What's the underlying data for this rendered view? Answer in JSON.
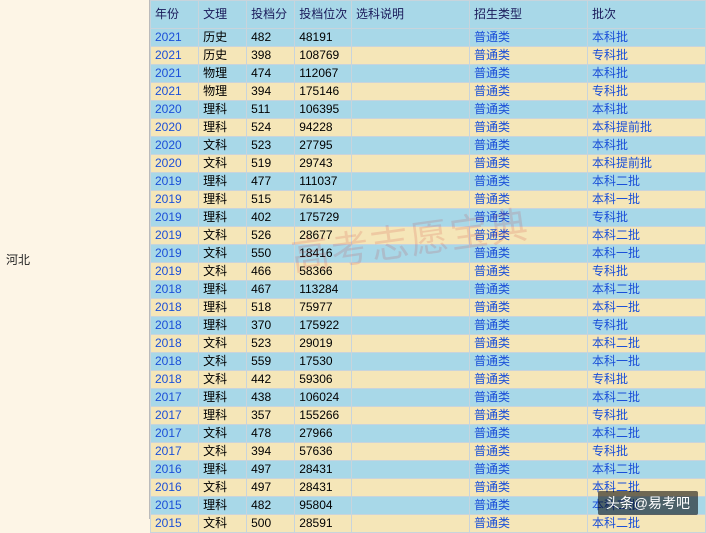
{
  "side_label": "河北",
  "watermark_text": "高考志愿宝典",
  "credit_text": "头条@易考吧",
  "colors": {
    "row_even": "#a8d8e8",
    "row_odd": "#f5e6b8",
    "header_bg": "#a8d8e8",
    "side_bg": "#fdf5e6",
    "border": "#c8d4dc",
    "link": "#1a4fd8",
    "header_text": "#1a1a5a"
  },
  "columns": [
    {
      "key": "year",
      "label": "年份"
    },
    {
      "key": "subject",
      "label": "文理"
    },
    {
      "key": "score",
      "label": "投档分"
    },
    {
      "key": "rank",
      "label": "投档位次"
    },
    {
      "key": "note",
      "label": "选科说明"
    },
    {
      "key": "type",
      "label": "招生类型"
    },
    {
      "key": "batch",
      "label": "批次"
    }
  ],
  "rows": [
    {
      "year": "2021",
      "subject": "历史",
      "score": "482",
      "rank": "48191",
      "note": "",
      "type": "普通类",
      "batch": "本科批"
    },
    {
      "year": "2021",
      "subject": "历史",
      "score": "398",
      "rank": "108769",
      "note": "",
      "type": "普通类",
      "batch": "专科批"
    },
    {
      "year": "2021",
      "subject": "物理",
      "score": "474",
      "rank": "112067",
      "note": "",
      "type": "普通类",
      "batch": "本科批"
    },
    {
      "year": "2021",
      "subject": "物理",
      "score": "394",
      "rank": "175146",
      "note": "",
      "type": "普通类",
      "batch": "专科批"
    },
    {
      "year": "2020",
      "subject": "理科",
      "score": "511",
      "rank": "106395",
      "note": "",
      "type": "普通类",
      "batch": "本科批"
    },
    {
      "year": "2020",
      "subject": "理科",
      "score": "524",
      "rank": "94228",
      "note": "",
      "type": "普通类",
      "batch": "本科提前批"
    },
    {
      "year": "2020",
      "subject": "文科",
      "score": "523",
      "rank": "27795",
      "note": "",
      "type": "普通类",
      "batch": "本科批"
    },
    {
      "year": "2020",
      "subject": "文科",
      "score": "519",
      "rank": "29743",
      "note": "",
      "type": "普通类",
      "batch": "本科提前批"
    },
    {
      "year": "2019",
      "subject": "理科",
      "score": "477",
      "rank": "111037",
      "note": "",
      "type": "普通类",
      "batch": "本科二批"
    },
    {
      "year": "2019",
      "subject": "理科",
      "score": "515",
      "rank": "76145",
      "note": "",
      "type": "普通类",
      "batch": "本科一批"
    },
    {
      "year": "2019",
      "subject": "理科",
      "score": "402",
      "rank": "175729",
      "note": "",
      "type": "普通类",
      "batch": "专科批"
    },
    {
      "year": "2019",
      "subject": "文科",
      "score": "526",
      "rank": "28677",
      "note": "",
      "type": "普通类",
      "batch": "本科二批"
    },
    {
      "year": "2019",
      "subject": "文科",
      "score": "550",
      "rank": "18416",
      "note": "",
      "type": "普通类",
      "batch": "本科一批"
    },
    {
      "year": "2019",
      "subject": "文科",
      "score": "466",
      "rank": "58366",
      "note": "",
      "type": "普通类",
      "batch": "专科批"
    },
    {
      "year": "2018",
      "subject": "理科",
      "score": "467",
      "rank": "113284",
      "note": "",
      "type": "普通类",
      "batch": "本科二批"
    },
    {
      "year": "2018",
      "subject": "理科",
      "score": "518",
      "rank": "75977",
      "note": "",
      "type": "普通类",
      "batch": "本科一批"
    },
    {
      "year": "2018",
      "subject": "理科",
      "score": "370",
      "rank": "175922",
      "note": "",
      "type": "普通类",
      "batch": "专科批"
    },
    {
      "year": "2018",
      "subject": "文科",
      "score": "523",
      "rank": "29019",
      "note": "",
      "type": "普通类",
      "batch": "本科二批"
    },
    {
      "year": "2018",
      "subject": "文科",
      "score": "559",
      "rank": "17530",
      "note": "",
      "type": "普通类",
      "batch": "本科一批"
    },
    {
      "year": "2018",
      "subject": "文科",
      "score": "442",
      "rank": "59306",
      "note": "",
      "type": "普通类",
      "batch": "专科批"
    },
    {
      "year": "2017",
      "subject": "理科",
      "score": "438",
      "rank": "106024",
      "note": "",
      "type": "普通类",
      "batch": "本科二批"
    },
    {
      "year": "2017",
      "subject": "理科",
      "score": "357",
      "rank": "155266",
      "note": "",
      "type": "普通类",
      "batch": "专科批"
    },
    {
      "year": "2017",
      "subject": "文科",
      "score": "478",
      "rank": "27966",
      "note": "",
      "type": "普通类",
      "batch": "本科二批"
    },
    {
      "year": "2017",
      "subject": "文科",
      "score": "394",
      "rank": "57636",
      "note": "",
      "type": "普通类",
      "batch": "专科批"
    },
    {
      "year": "2016",
      "subject": "理科",
      "score": "497",
      "rank": "28431",
      "note": "",
      "type": "普通类",
      "batch": "本科二批"
    },
    {
      "year": "2016",
      "subject": "文科",
      "score": "497",
      "rank": "28431",
      "note": "",
      "type": "普通类",
      "batch": "本科二批"
    },
    {
      "year": "2015",
      "subject": "理科",
      "score": "482",
      "rank": "95804",
      "note": "",
      "type": "普通类",
      "batch": "本科二批"
    },
    {
      "year": "2015",
      "subject": "文科",
      "score": "500",
      "rank": "28591",
      "note": "",
      "type": "普通类",
      "batch": "本科二批"
    }
  ]
}
